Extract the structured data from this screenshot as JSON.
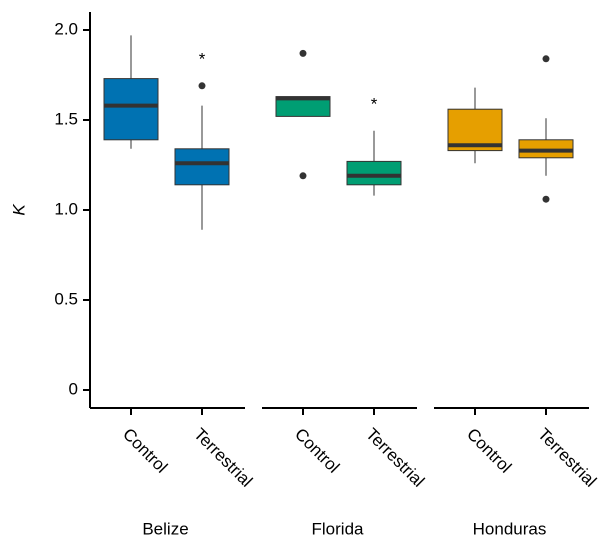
{
  "chart_data": {
    "type": "boxplot",
    "ylabel": "K",
    "ylim": [
      -0.1,
      2.1
    ],
    "yticks": [
      0,
      0.5,
      {
        "value": 1,
        "label": "1.0"
      },
      1.5,
      {
        "value": 2,
        "label": "2.0"
      }
    ],
    "groups": [
      {
        "name": "Belize",
        "color": "#0072b2",
        "boxes": [
          {
            "category": "Control",
            "whislo": 1.34,
            "q1": 1.39,
            "median": 1.58,
            "q3": 1.73,
            "whishi": 1.97,
            "outliers": []
          },
          {
            "category": "Terrestrial",
            "whislo": 0.89,
            "q1": 1.14,
            "median": 1.26,
            "q3": 1.34,
            "whishi": 1.58,
            "outliers": [
              1.69
            ],
            "annotation": "*"
          }
        ]
      },
      {
        "name": "Florida",
        "color": "#009e73",
        "boxes": [
          {
            "category": "Control",
            "whislo": 1.52,
            "q1": 1.52,
            "median": 1.62,
            "q3": 1.63,
            "whishi": 1.63,
            "outliers": [
              1.87,
              1.19
            ]
          },
          {
            "category": "Terrestrial",
            "whislo": 1.08,
            "q1": 1.14,
            "median": 1.19,
            "q3": 1.27,
            "whishi": 1.44,
            "outliers": [],
            "annotation": "*"
          }
        ]
      },
      {
        "name": "Honduras",
        "color": "#e69f00",
        "boxes": [
          {
            "category": "Control",
            "whislo": 1.26,
            "q1": 1.33,
            "median": 1.36,
            "q3": 1.56,
            "whishi": 1.68,
            "outliers": []
          },
          {
            "category": "Terrestrial",
            "whislo": 1.19,
            "q1": 1.29,
            "median": 1.33,
            "q3": 1.39,
            "whishi": 1.51,
            "outliers": [
              1.84,
              1.06
            ]
          }
        ]
      }
    ]
  }
}
